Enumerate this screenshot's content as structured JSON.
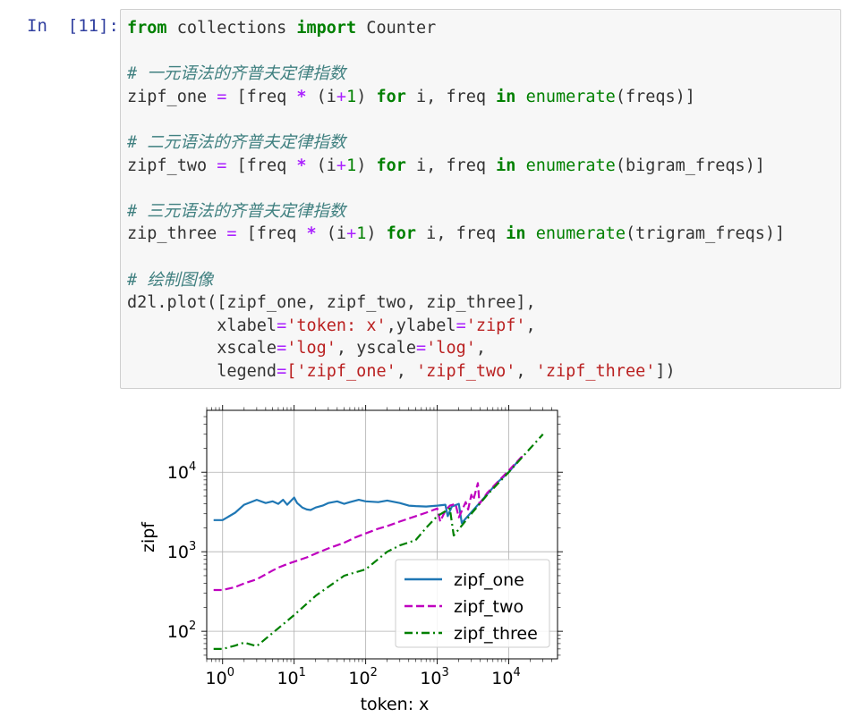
{
  "cell": {
    "prompt": "In  [11]:",
    "code_lines": [
      [
        {
          "t": "from",
          "c": "kw"
        },
        {
          "t": " collections ",
          "c": ""
        },
        {
          "t": "import",
          "c": "kw"
        },
        {
          "t": " Counter",
          "c": ""
        }
      ],
      [],
      [
        {
          "t": "# 一元语法的齐普夫定律指数",
          "c": "cm"
        }
      ],
      [
        {
          "t": "zipf_one ",
          "c": ""
        },
        {
          "t": "=",
          "c": "op2"
        },
        {
          "t": " [freq ",
          "c": ""
        },
        {
          "t": "*",
          "c": "op"
        },
        {
          "t": " (i",
          "c": ""
        },
        {
          "t": "+",
          "c": "op2"
        },
        {
          "t": "1",
          "c": "num"
        },
        {
          "t": ") ",
          "c": ""
        },
        {
          "t": "for",
          "c": "kw"
        },
        {
          "t": " i, freq ",
          "c": ""
        },
        {
          "t": "in",
          "c": "kw"
        },
        {
          "t": " ",
          "c": ""
        },
        {
          "t": "enumerate",
          "c": "bi"
        },
        {
          "t": "(freqs)]",
          "c": ""
        }
      ],
      [],
      [
        {
          "t": "# 二元语法的齐普夫定律指数",
          "c": "cm"
        }
      ],
      [
        {
          "t": "zipf_two ",
          "c": ""
        },
        {
          "t": "=",
          "c": "op2"
        },
        {
          "t": " [freq ",
          "c": ""
        },
        {
          "t": "*",
          "c": "op"
        },
        {
          "t": " (i",
          "c": ""
        },
        {
          "t": "+",
          "c": "op2"
        },
        {
          "t": "1",
          "c": "num"
        },
        {
          "t": ") ",
          "c": ""
        },
        {
          "t": "for",
          "c": "kw"
        },
        {
          "t": " i, freq ",
          "c": ""
        },
        {
          "t": "in",
          "c": "kw"
        },
        {
          "t": " ",
          "c": ""
        },
        {
          "t": "enumerate",
          "c": "bi"
        },
        {
          "t": "(bigram_freqs)]",
          "c": ""
        }
      ],
      [],
      [
        {
          "t": "# 三元语法的齐普夫定律指数",
          "c": "cm"
        }
      ],
      [
        {
          "t": "zip_three ",
          "c": ""
        },
        {
          "t": "=",
          "c": "op2"
        },
        {
          "t": " [freq ",
          "c": ""
        },
        {
          "t": "*",
          "c": "op"
        },
        {
          "t": " (i",
          "c": ""
        },
        {
          "t": "+",
          "c": "op2"
        },
        {
          "t": "1",
          "c": "num"
        },
        {
          "t": ") ",
          "c": ""
        },
        {
          "t": "for",
          "c": "kw"
        },
        {
          "t": " i, freq ",
          "c": ""
        },
        {
          "t": "in",
          "c": "kw"
        },
        {
          "t": " ",
          "c": ""
        },
        {
          "t": "enumerate",
          "c": "bi"
        },
        {
          "t": "(trigram_freqs)]",
          "c": ""
        }
      ],
      [],
      [
        {
          "t": "# 绘制图像",
          "c": "cm"
        }
      ],
      [
        {
          "t": "d2l.plot([zipf_one, zipf_two, zip_three],",
          "c": ""
        }
      ],
      [
        {
          "t": "         xlabel",
          "c": ""
        },
        {
          "t": "=",
          "c": "op2"
        },
        {
          "t": "'token: x'",
          "c": "str"
        },
        {
          "t": ",ylabel",
          "c": ""
        },
        {
          "t": "=",
          "c": "op2"
        },
        {
          "t": "'zipf'",
          "c": "str"
        },
        {
          "t": ",",
          "c": ""
        }
      ],
      [
        {
          "t": "         xscale",
          "c": ""
        },
        {
          "t": "=",
          "c": "op2"
        },
        {
          "t": "'log'",
          "c": "str"
        },
        {
          "t": ", yscale",
          "c": ""
        },
        {
          "t": "=",
          "c": "op2"
        },
        {
          "t": "'log'",
          "c": "str"
        },
        {
          "t": ",",
          "c": ""
        }
      ],
      [
        {
          "t": "         legend",
          "c": ""
        },
        {
          "t": "=",
          "c": "op2"
        },
        {
          "t": "['zipf_one'",
          "c": "str"
        },
        {
          "t": ", ",
          "c": ""
        },
        {
          "t": "'zipf_two'",
          "c": "str"
        },
        {
          "t": ", ",
          "c": ""
        },
        {
          "t": "'zipf_three'",
          "c": "str"
        },
        {
          "t": "])",
          "c": ""
        }
      ]
    ]
  },
  "chart_data": {
    "type": "line",
    "xlabel": "token: x",
    "ylabel": "zipf",
    "xscale": "log",
    "yscale": "log",
    "xlim": [
      0.6,
      48000
    ],
    "ylim": [
      45,
      60000
    ],
    "grid": true,
    "legend_position": "lower-right",
    "x_ticks": [
      {
        "base": "10",
        "exp": "0",
        "value": 1
      },
      {
        "base": "10",
        "exp": "1",
        "value": 10
      },
      {
        "base": "10",
        "exp": "2",
        "value": 100
      },
      {
        "base": "10",
        "exp": "3",
        "value": 1000
      },
      {
        "base": "10",
        "exp": "4",
        "value": 10000
      }
    ],
    "y_ticks": [
      {
        "base": "10",
        "exp": "2",
        "value": 100
      },
      {
        "base": "10",
        "exp": "3",
        "value": 1000
      },
      {
        "base": "10",
        "exp": "4",
        "value": 10000
      }
    ],
    "series": [
      {
        "name": "zipf_one",
        "color": "#1f77b4",
        "dash": "solid",
        "points": [
          [
            0.75,
            2500
          ],
          [
            1,
            2500
          ],
          [
            1.5,
            3100
          ],
          [
            2,
            3900
          ],
          [
            3,
            4500
          ],
          [
            4,
            4100
          ],
          [
            5,
            4300
          ],
          [
            6,
            4000
          ],
          [
            7,
            4500
          ],
          [
            8,
            3900
          ],
          [
            9,
            4350
          ],
          [
            10,
            4800
          ],
          [
            11,
            4100
          ],
          [
            13,
            3600
          ],
          [
            15,
            3400
          ],
          [
            17,
            3350
          ],
          [
            20,
            3600
          ],
          [
            25,
            3800
          ],
          [
            30,
            4100
          ],
          [
            40,
            4300
          ],
          [
            50,
            4000
          ],
          [
            60,
            4200
          ],
          [
            80,
            4500
          ],
          [
            100,
            4300
          ],
          [
            150,
            4200
          ],
          [
            200,
            4400
          ],
          [
            300,
            4100
          ],
          [
            400,
            3800
          ],
          [
            500,
            3750
          ],
          [
            700,
            3700
          ],
          [
            1000,
            3800
          ],
          [
            1300,
            3900
          ],
          [
            1400,
            2800
          ],
          [
            1600,
            3700
          ],
          [
            2000,
            4000
          ],
          [
            2200,
            2300
          ],
          [
            4000,
            4200
          ],
          [
            7000,
            7500
          ],
          [
            10000,
            10000
          ],
          [
            15000,
            15500
          ]
        ]
      },
      {
        "name": "zipf_two",
        "color": "#bf00bf",
        "dash": "dashed",
        "points": [
          [
            0.75,
            330
          ],
          [
            1,
            330
          ],
          [
            1.5,
            360
          ],
          [
            2,
            400
          ],
          [
            3,
            450
          ],
          [
            4,
            520
          ],
          [
            5,
            580
          ],
          [
            6,
            630
          ],
          [
            8,
            700
          ],
          [
            10,
            750
          ],
          [
            15,
            850
          ],
          [
            20,
            950
          ],
          [
            30,
            1100
          ],
          [
            50,
            1300
          ],
          [
            70,
            1500
          ],
          [
            100,
            1700
          ],
          [
            150,
            1950
          ],
          [
            200,
            2100
          ],
          [
            300,
            2400
          ],
          [
            500,
            2800
          ],
          [
            700,
            3100
          ],
          [
            1000,
            3500
          ],
          [
            1100,
            2400
          ],
          [
            1300,
            3300
          ],
          [
            1500,
            3800
          ],
          [
            1800,
            4000
          ],
          [
            2000,
            2700
          ],
          [
            2500,
            4200
          ],
          [
            2700,
            3400
          ],
          [
            3000,
            5200
          ],
          [
            3200,
            4500
          ],
          [
            3700,
            7300
          ],
          [
            3900,
            4000
          ],
          [
            5000,
            5500
          ],
          [
            10000,
            10500
          ],
          [
            15000,
            15500
          ],
          [
            17000,
            16000
          ]
        ]
      },
      {
        "name": "zipf_three",
        "color": "#008000",
        "dash": "dashdot",
        "points": [
          [
            0.75,
            60
          ],
          [
            1,
            60
          ],
          [
            1.5,
            66
          ],
          [
            2,
            72
          ],
          [
            3,
            65
          ],
          [
            5,
            95
          ],
          [
            10,
            160
          ],
          [
            20,
            280
          ],
          [
            50,
            500
          ],
          [
            100,
            600
          ],
          [
            200,
            1000
          ],
          [
            300,
            1200
          ],
          [
            500,
            1400
          ],
          [
            700,
            2000
          ],
          [
            1000,
            2800
          ],
          [
            1500,
            3500
          ],
          [
            1700,
            1600
          ],
          [
            3000,
            3000
          ],
          [
            5000,
            5200
          ],
          [
            10000,
            10000
          ],
          [
            20000,
            20000
          ],
          [
            30000,
            30000
          ]
        ]
      }
    ]
  }
}
